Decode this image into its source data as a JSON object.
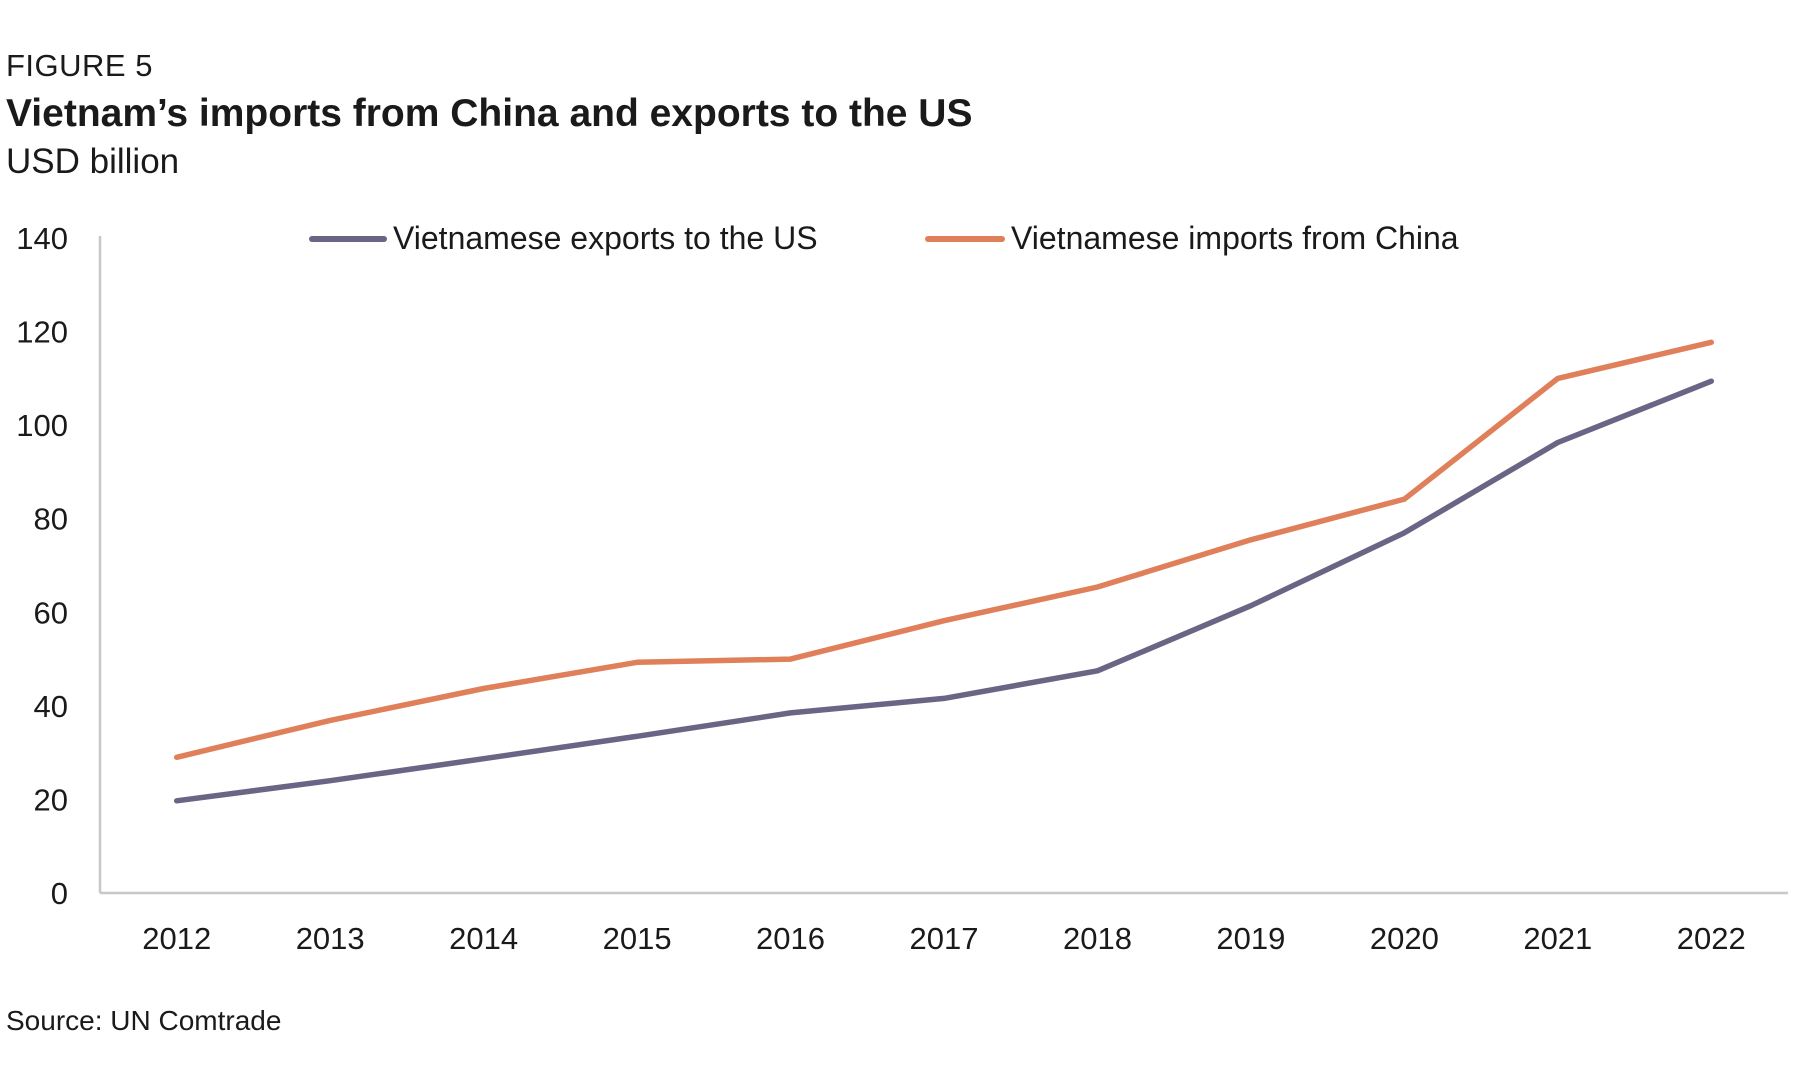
{
  "figure_label": "FIGURE 5",
  "title": "Vietnam’s imports from China and exports to the US",
  "subtitle": "USD billion",
  "source": "Source: UN Comtrade",
  "chart_data": {
    "type": "line",
    "title": "Vietnam’s imports from China and exports to the US",
    "ylabel": "USD billion",
    "xlabel": "",
    "categories": [
      "2012",
      "2013",
      "2014",
      "2015",
      "2016",
      "2017",
      "2018",
      "2019",
      "2020",
      "2021",
      "2022"
    ],
    "ylim": [
      0,
      140
    ],
    "yticks": [
      "0",
      "20",
      "40",
      "60",
      "80",
      "100",
      "120",
      "140"
    ],
    "grid": false,
    "legend_position": "top",
    "series": [
      {
        "name": "Vietnamese exports to the US",
        "color": "#6b6585",
        "values": [
          19.7,
          24.0,
          28.7,
          33.5,
          38.5,
          41.6,
          47.5,
          61.4,
          77.0,
          96.3,
          109.4
        ]
      },
      {
        "name": "Vietnamese imports from China",
        "color": "#e0805a",
        "values": [
          29.0,
          36.9,
          43.7,
          49.3,
          50.0,
          58.2,
          65.4,
          75.5,
          84.2,
          110.0,
          117.7
        ]
      }
    ]
  }
}
